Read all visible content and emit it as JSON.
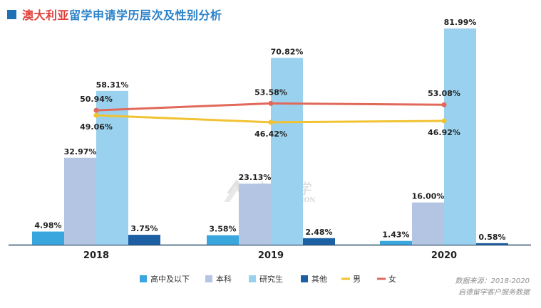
{
  "title": {
    "accent": "澳大利亚",
    "main": "留学申请学历层次及性别分析"
  },
  "watermark": {
    "cn": "启德留学",
    "en": "EIC EDUCATION"
  },
  "source": {
    "line1": "数据来源：2018-2020",
    "line2": "启德留学客户服务数据"
  },
  "colors": {
    "bar1": "#3aa6de",
    "bar2": "#b3c5e2",
    "bar3": "#9ad1ee",
    "bar4": "#1d5fa3",
    "male": "#f1c232",
    "female": "#e0695a",
    "title_accent": "#e0403c",
    "title_main": "#2c82c9"
  },
  "chart_data": {
    "type": "bar",
    "categories": [
      "2018",
      "2019",
      "2020"
    ],
    "series": [
      {
        "name": "高中及以下",
        "kind": "bar",
        "values": [
          4.98,
          3.58,
          1.43
        ],
        "labels": [
          "4.98%",
          "3.58%",
          "1.43%"
        ]
      },
      {
        "name": "本科",
        "kind": "bar",
        "values": [
          32.97,
          23.13,
          16.0
        ],
        "labels": [
          "32.97%",
          "23.13%",
          "16.00%"
        ]
      },
      {
        "name": "研究生",
        "kind": "bar",
        "values": [
          58.31,
          70.82,
          81.99
        ],
        "labels": [
          "58.31%",
          "70.82%",
          "81.99%"
        ]
      },
      {
        "name": "其他",
        "kind": "bar",
        "values": [
          3.75,
          2.48,
          0.58
        ],
        "labels": [
          "3.75%",
          "2.48%",
          "0.58%"
        ]
      },
      {
        "name": "男",
        "kind": "line",
        "values": [
          49.06,
          46.42,
          46.92
        ],
        "labels": [
          "49.06%",
          "46.42%",
          "46.92%"
        ]
      },
      {
        "name": "女",
        "kind": "line",
        "values": [
          50.94,
          53.58,
          53.08
        ],
        "labels": [
          "50.94%",
          "53.58%",
          "53.08%"
        ]
      }
    ],
    "ylim": [
      0,
      82
    ],
    "grid": false,
    "legend": "bottom"
  }
}
